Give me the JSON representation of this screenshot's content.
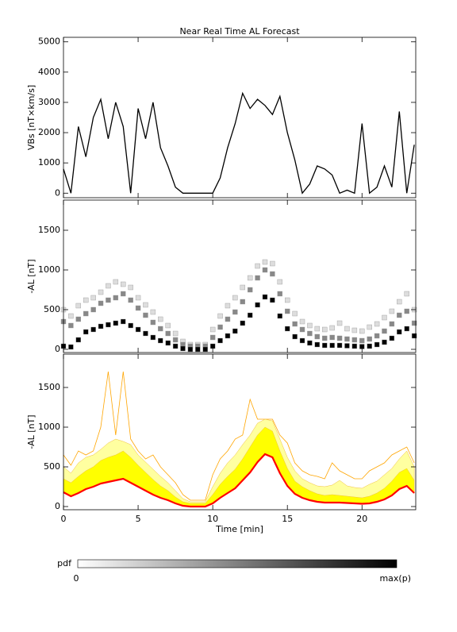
{
  "chart_data": [
    {
      "type": "line",
      "title": "Near Real Time AL Forecast",
      "ylabel": "VBs [nT×km/s]",
      "x": [
        0,
        0.5,
        1,
        1.5,
        2,
        2.5,
        3,
        3.5,
        4,
        4.5,
        5,
        5.5,
        6,
        6.5,
        7,
        7.5,
        8,
        8.5,
        9,
        9.5,
        10,
        10.5,
        11,
        11.5,
        12,
        12.5,
        13,
        13.5,
        14,
        14.5,
        15,
        15.5,
        16,
        16.5,
        17,
        17.5,
        18,
        18.5,
        19,
        19.5,
        20,
        20.5,
        21,
        21.5,
        22,
        22.5,
        23,
        23.5
      ],
      "values": [
        800,
        0,
        2200,
        1200,
        2500,
        3100,
        1800,
        3000,
        2200,
        0,
        2800,
        1800,
        3000,
        1500,
        900,
        200,
        0,
        0,
        0,
        0,
        0,
        500,
        1500,
        2300,
        3300,
        2800,
        3100,
        2900,
        2600,
        3200,
        2000,
        1100,
        0,
        300,
        900,
        800,
        600,
        0,
        100,
        0,
        2300,
        0,
        200,
        900,
        200,
        2700,
        0,
        1600
      ],
      "color": "#000000",
      "xlim": [
        0,
        23.6
      ],
      "ylim": [
        -150,
        5150
      ],
      "yticks": [
        0,
        1000,
        2000,
        3000,
        4000,
        5000
      ]
    },
    {
      "type": "heatmap",
      "ylabel": "-AL [nT]",
      "x": [
        0,
        0.5,
        1,
        1.5,
        2,
        2.5,
        3,
        3.5,
        4,
        4.5,
        5,
        5.5,
        6,
        6.5,
        7,
        7.5,
        8,
        8.5,
        9,
        9.5,
        10,
        10.5,
        11,
        11.5,
        12,
        12.5,
        13,
        13.5,
        14,
        14.5,
        15,
        15.5,
        16,
        16.5,
        17,
        17.5,
        18,
        18.5,
        19,
        19.5,
        20,
        20.5,
        21,
        21.5,
        22,
        22.5,
        23,
        23.5
      ],
      "series": [
        {
          "color": "#dddddd",
          "values": [
            500,
            420,
            550,
            620,
            650,
            720,
            800,
            850,
            820,
            780,
            650,
            560,
            470,
            380,
            300,
            200,
            100,
            60,
            60,
            60,
            250,
            420,
            550,
            650,
            780,
            900,
            1050,
            1100,
            1080,
            850,
            620,
            450,
            350,
            300,
            260,
            250,
            270,
            330,
            260,
            240,
            230,
            280,
            320,
            400,
            480,
            600,
            700,
            500
          ]
        },
        {
          "color": "#888888",
          "values": [
            350,
            300,
            380,
            450,
            500,
            580,
            620,
            650,
            700,
            620,
            520,
            430,
            340,
            260,
            200,
            120,
            60,
            40,
            40,
            40,
            150,
            280,
            380,
            470,
            600,
            750,
            900,
            1000,
            950,
            700,
            480,
            320,
            250,
            200,
            160,
            140,
            150,
            140,
            130,
            120,
            110,
            130,
            170,
            230,
            320,
            430,
            480,
            330
          ]
        },
        {
          "color": "#000000",
          "values": [
            40,
            30,
            120,
            220,
            250,
            290,
            310,
            330,
            350,
            300,
            250,
            200,
            150,
            110,
            80,
            40,
            10,
            0,
            0,
            0,
            40,
            110,
            170,
            230,
            330,
            430,
            560,
            660,
            620,
            420,
            260,
            160,
            110,
            80,
            60,
            50,
            50,
            50,
            45,
            40,
            35,
            40,
            60,
            90,
            140,
            220,
            260,
            170
          ]
        }
      ],
      "xlim": [
        0,
        23.6
      ],
      "ylim": [
        -40,
        1880
      ],
      "yticks": [
        0,
        500,
        1000,
        1500
      ]
    },
    {
      "type": "band",
      "ylabel": "-AL [nT]",
      "xlabel": "Time [min]",
      "x": [
        0,
        0.5,
        1,
        1.5,
        2,
        2.5,
        3,
        3.5,
        4,
        4.5,
        5,
        5.5,
        6,
        6.5,
        7,
        7.5,
        8,
        8.5,
        9,
        9.5,
        10,
        10.5,
        11,
        11.5,
        12,
        12.5,
        13,
        13.5,
        14,
        14.5,
        15,
        15.5,
        16,
        16.5,
        17,
        17.5,
        18,
        18.5,
        19,
        19.5,
        20,
        20.5,
        21,
        21.5,
        22,
        22.5,
        23,
        23.5
      ],
      "series": [
        {
          "color": "#ffa500",
          "values": [
            650,
            520,
            700,
            650,
            700,
            1000,
            1700,
            900,
            1700,
            850,
            700,
            600,
            650,
            500,
            400,
            300,
            150,
            80,
            80,
            80,
            400,
            600,
            700,
            850,
            900,
            1350,
            1100,
            1100,
            1100,
            900,
            800,
            550,
            450,
            400,
            380,
            350,
            550,
            450,
            400,
            350,
            350,
            450,
            500,
            550,
            650,
            700,
            750,
            550
          ]
        },
        {
          "color": "#ffffa0",
          "values": [
            500,
            420,
            550,
            620,
            650,
            720,
            800,
            850,
            820,
            780,
            650,
            560,
            470,
            380,
            300,
            200,
            100,
            60,
            60,
            60,
            250,
            420,
            550,
            650,
            780,
            900,
            1050,
            1100,
            1080,
            850,
            620,
            450,
            350,
            300,
            260,
            250,
            270,
            330,
            260,
            240,
            230,
            280,
            320,
            400,
            480,
            600,
            700,
            500
          ]
        },
        {
          "color": "#ffff00",
          "values": [
            350,
            300,
            380,
            450,
            500,
            580,
            620,
            650,
            700,
            620,
            520,
            430,
            340,
            260,
            200,
            120,
            60,
            40,
            40,
            40,
            150,
            280,
            380,
            470,
            600,
            750,
            900,
            1000,
            950,
            700,
            480,
            320,
            250,
            200,
            160,
            140,
            150,
            140,
            130,
            120,
            110,
            130,
            170,
            230,
            320,
            430,
            480,
            330
          ]
        },
        {
          "color": "#ff0000",
          "values": [
            180,
            130,
            170,
            220,
            250,
            290,
            310,
            330,
            350,
            300,
            250,
            200,
            150,
            110,
            80,
            40,
            10,
            0,
            0,
            0,
            40,
            110,
            170,
            230,
            330,
            430,
            560,
            660,
            620,
            420,
            260,
            160,
            110,
            80,
            60,
            50,
            50,
            50,
            45,
            40,
            35,
            40,
            60,
            90,
            140,
            220,
            260,
            170
          ]
        }
      ],
      "xlim": [
        0,
        23.6
      ],
      "ylim": [
        -40,
        1920
      ],
      "yticks": [
        0,
        500,
        1000,
        1500
      ],
      "xticks": [
        0,
        5,
        10,
        15,
        20
      ]
    }
  ],
  "colorbar": {
    "label": "pdf",
    "min_label": "0",
    "max_label": "max(p)"
  }
}
